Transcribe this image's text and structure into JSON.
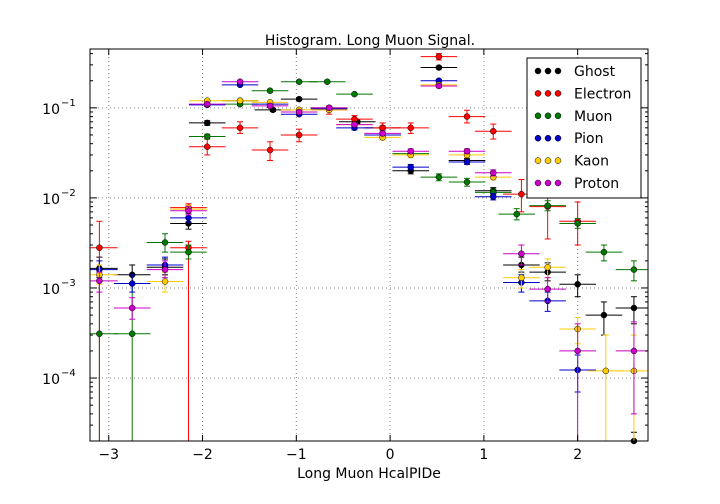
{
  "chart_data": {
    "type": "scatter",
    "title": "Histogram. Long Muon Signal.",
    "xlabel": "Long Muon HcalPIDe",
    "ylabel": "",
    "xlim": [
      -3.2,
      2.75
    ],
    "ylim": [
      2e-05,
      0.45
    ],
    "yscale": "log",
    "grid": true,
    "legend_position": "top-right",
    "bin_halfwidth": 0.195,
    "x_ticks": [
      {
        "value": -3,
        "label": "−3"
      },
      {
        "value": -2,
        "label": "−2"
      },
      {
        "value": -1,
        "label": "−1"
      },
      {
        "value": 0,
        "label": "0"
      },
      {
        "value": 1,
        "label": "1"
      },
      {
        "value": 2,
        "label": "2"
      }
    ],
    "y_ticks": [
      {
        "value": 0.0001,
        "base": "10",
        "exp": "−4"
      },
      {
        "value": 0.001,
        "base": "10",
        "exp": "−3"
      },
      {
        "value": 0.01,
        "base": "10",
        "exp": "−2"
      },
      {
        "value": 0.1,
        "base": "10",
        "exp": "−1"
      }
    ],
    "series": [
      {
        "name": "Ghost",
        "color": "#000000",
        "points": [
          {
            "x": -3.1,
            "y": 0.00165,
            "lo": 0.0012,
            "hi": 0.0022
          },
          {
            "x": -2.75,
            "y": 0.0014,
            "lo": 0.0011,
            "hi": 0.0018
          },
          {
            "x": -2.4,
            "y": 0.0017,
            "lo": 0.0014,
            "hi": 0.0021
          },
          {
            "x": -2.15,
            "y": 0.0052,
            "lo": 0.0045,
            "hi": 0.006
          },
          {
            "x": -1.95,
            "y": 0.068,
            "lo": 0.064,
            "hi": 0.072
          },
          {
            "x": -1.6,
            "y": 0.12,
            "lo": 0.116,
            "hi": 0.124
          },
          {
            "x": -1.25,
            "y": 0.095,
            "lo": 0.091,
            "hi": 0.099
          },
          {
            "x": -0.97,
            "y": 0.125,
            "lo": 0.121,
            "hi": 0.129
          },
          {
            "x": -0.65,
            "y": 0.1,
            "lo": 0.096,
            "hi": 0.104
          },
          {
            "x": -0.35,
            "y": 0.07,
            "lo": 0.067,
            "hi": 0.073
          },
          {
            "x": -0.08,
            "y": 0.06,
            "lo": 0.057,
            "hi": 0.063
          },
          {
            "x": 0.22,
            "y": 0.02,
            "lo": 0.0185,
            "hi": 0.0215
          },
          {
            "x": 0.52,
            "y": 0.28,
            "lo": 0.27,
            "hi": 0.29
          },
          {
            "x": 0.82,
            "y": 0.026,
            "lo": 0.0245,
            "hi": 0.0275
          },
          {
            "x": 1.1,
            "y": 0.012,
            "lo": 0.011,
            "hi": 0.013
          },
          {
            "x": 1.4,
            "y": 0.0018,
            "lo": 0.0015,
            "hi": 0.0022
          },
          {
            "x": 1.68,
            "y": 0.0015,
            "lo": 0.0012,
            "hi": 0.0019
          },
          {
            "x": 2.0,
            "y": 0.0011,
            "lo": 0.0008,
            "hi": 0.0014
          },
          {
            "x": 2.28,
            "y": 0.0005,
            "lo": 0.0003,
            "hi": 0.0007
          },
          {
            "x": 2.6,
            "y": 0.0006,
            "lo": 0.0004,
            "hi": 0.0008
          },
          {
            "x": 2.6,
            "y": 2e-05,
            "lo": 1.8e-05,
            "hi": 2.5e-05
          }
        ]
      },
      {
        "name": "Electron",
        "color": "#ff0000",
        "points": [
          {
            "x": -3.1,
            "y": 0.0028,
            "lo": 2e-05,
            "hi": 0.0055
          },
          {
            "x": -2.15,
            "y": 0.0028,
            "lo": 2e-05,
            "hi": 0.0033
          },
          {
            "x": -2.15,
            "y": 0.0078,
            "lo": 0.007,
            "hi": 0.0086
          },
          {
            "x": -1.95,
            "y": 0.037,
            "lo": 0.03,
            "hi": 0.045
          },
          {
            "x": -1.6,
            "y": 0.06,
            "lo": 0.052,
            "hi": 0.07
          },
          {
            "x": -1.28,
            "y": 0.034,
            "lo": 0.026,
            "hi": 0.042
          },
          {
            "x": -0.97,
            "y": 0.05,
            "lo": 0.042,
            "hi": 0.058
          },
          {
            "x": -0.65,
            "y": 0.095,
            "lo": 0.085,
            "hi": 0.105
          },
          {
            "x": -0.38,
            "y": 0.075,
            "lo": 0.068,
            "hi": 0.082
          },
          {
            "x": -0.08,
            "y": 0.06,
            "lo": 0.053,
            "hi": 0.068
          },
          {
            "x": 0.22,
            "y": 0.06,
            "lo": 0.052,
            "hi": 0.068
          },
          {
            "x": 0.52,
            "y": 0.37,
            "lo": 0.34,
            "hi": 0.4
          },
          {
            "x": 0.82,
            "y": 0.08,
            "lo": 0.068,
            "hi": 0.094
          },
          {
            "x": 1.1,
            "y": 0.055,
            "lo": 0.045,
            "hi": 0.066
          },
          {
            "x": 1.4,
            "y": 0.011,
            "lo": 0.007,
            "hi": 0.016
          },
          {
            "x": 1.68,
            "y": 0.008,
            "lo": 0.0035,
            "hi": 0.014
          },
          {
            "x": 2.0,
            "y": 0.0055,
            "lo": 0.003,
            "hi": 0.009
          }
        ]
      },
      {
        "name": "Muon",
        "color": "#007700",
        "points": [
          {
            "x": -3.1,
            "y": 0.00031,
            "lo": 2e-05,
            "hi": 0.0015
          },
          {
            "x": -2.75,
            "y": 0.00031,
            "lo": 2e-05,
            "hi": 0.0011
          },
          {
            "x": -2.4,
            "y": 0.0032,
            "lo": 0.0025,
            "hi": 0.004
          },
          {
            "x": -2.15,
            "y": 0.0025,
            "lo": 0.0021,
            "hi": 0.003
          },
          {
            "x": -1.95,
            "y": 0.048,
            "lo": 0.045,
            "hi": 0.051
          },
          {
            "x": -1.6,
            "y": 0.11,
            "lo": 0.106,
            "hi": 0.114
          },
          {
            "x": -1.28,
            "y": 0.155,
            "lo": 0.15,
            "hi": 0.16
          },
          {
            "x": -0.97,
            "y": 0.195,
            "lo": 0.19,
            "hi": 0.2
          },
          {
            "x": -0.67,
            "y": 0.195,
            "lo": 0.19,
            "hi": 0.2
          },
          {
            "x": -0.38,
            "y": 0.142,
            "lo": 0.138,
            "hi": 0.146
          },
          {
            "x": -0.08,
            "y": 0.05,
            "lo": 0.048,
            "hi": 0.052
          },
          {
            "x": 0.22,
            "y": 0.031,
            "lo": 0.0295,
            "hi": 0.0325
          },
          {
            "x": 0.52,
            "y": 0.017,
            "lo": 0.0155,
            "hi": 0.0185
          },
          {
            "x": 0.82,
            "y": 0.015,
            "lo": 0.0135,
            "hi": 0.0165
          },
          {
            "x": 1.1,
            "y": 0.0115,
            "lo": 0.0105,
            "hi": 0.0125
          },
          {
            "x": 1.35,
            "y": 0.0066,
            "lo": 0.0057,
            "hi": 0.0076
          },
          {
            "x": 1.68,
            "y": 0.0082,
            "lo": 0.0072,
            "hi": 0.0093
          },
          {
            "x": 2.0,
            "y": 0.0052,
            "lo": 0.0046,
            "hi": 0.0059
          },
          {
            "x": 2.28,
            "y": 0.0025,
            "lo": 0.002,
            "hi": 0.003
          },
          {
            "x": 2.6,
            "y": 0.0016,
            "lo": 0.0012,
            "hi": 0.002
          }
        ]
      },
      {
        "name": "Pion",
        "color": "#0000cc",
        "points": [
          {
            "x": -3.1,
            "y": 0.0016,
            "lo": 0.0013,
            "hi": 0.002
          },
          {
            "x": -2.75,
            "y": 0.00112,
            "lo": 0.0009,
            "hi": 0.0014
          },
          {
            "x": -2.4,
            "y": 0.0018,
            "lo": 0.0015,
            "hi": 0.0022
          },
          {
            "x": -2.15,
            "y": 0.006,
            "lo": 0.0054,
            "hi": 0.0067
          },
          {
            "x": -1.95,
            "y": 0.108,
            "lo": 0.104,
            "hi": 0.112
          },
          {
            "x": -1.6,
            "y": 0.18,
            "lo": 0.175,
            "hi": 0.185
          },
          {
            "x": -1.28,
            "y": 0.11,
            "lo": 0.106,
            "hi": 0.114
          },
          {
            "x": -0.97,
            "y": 0.085,
            "lo": 0.082,
            "hi": 0.088
          },
          {
            "x": -0.65,
            "y": 0.097,
            "lo": 0.093,
            "hi": 0.101
          },
          {
            "x": -0.38,
            "y": 0.06,
            "lo": 0.057,
            "hi": 0.063
          },
          {
            "x": -0.08,
            "y": 0.05,
            "lo": 0.047,
            "hi": 0.053
          },
          {
            "x": 0.22,
            "y": 0.022,
            "lo": 0.0205,
            "hi": 0.0235
          },
          {
            "x": 0.52,
            "y": 0.2,
            "lo": 0.193,
            "hi": 0.207
          },
          {
            "x": 0.82,
            "y": 0.025,
            "lo": 0.0235,
            "hi": 0.0265
          },
          {
            "x": 1.1,
            "y": 0.0103,
            "lo": 0.0095,
            "hi": 0.0112
          },
          {
            "x": 1.4,
            "y": 0.00115,
            "lo": 0.0009,
            "hi": 0.0014
          },
          {
            "x": 1.68,
            "y": 0.00072,
            "lo": 0.00055,
            "hi": 0.0009
          },
          {
            "x": 2.0,
            "y": 0.000123,
            "lo": 7e-05,
            "hi": 0.00018
          }
        ]
      },
      {
        "name": "Kaon",
        "color": "#ffcc00",
        "points": [
          {
            "x": -3.1,
            "y": 0.0014,
            "lo": 0.0011,
            "hi": 0.0018
          },
          {
            "x": -2.4,
            "y": 0.00118,
            "lo": 0.0009,
            "hi": 0.0015
          },
          {
            "x": -2.15,
            "y": 0.0075,
            "lo": 0.0068,
            "hi": 0.0083
          },
          {
            "x": -1.95,
            "y": 0.12,
            "lo": 0.116,
            "hi": 0.124
          },
          {
            "x": -1.6,
            "y": 0.12,
            "lo": 0.116,
            "hi": 0.124
          },
          {
            "x": -1.28,
            "y": 0.115,
            "lo": 0.111,
            "hi": 0.119
          },
          {
            "x": -0.97,
            "y": 0.095,
            "lo": 0.091,
            "hi": 0.099
          },
          {
            "x": -0.65,
            "y": 0.095,
            "lo": 0.091,
            "hi": 0.099
          },
          {
            "x": -0.38,
            "y": 0.065,
            "lo": 0.062,
            "hi": 0.068
          },
          {
            "x": -0.08,
            "y": 0.047,
            "lo": 0.044,
            "hi": 0.05
          },
          {
            "x": 0.22,
            "y": 0.03,
            "lo": 0.028,
            "hi": 0.032
          },
          {
            "x": 0.52,
            "y": 0.18,
            "lo": 0.173,
            "hi": 0.187
          },
          {
            "x": 0.82,
            "y": 0.03,
            "lo": 0.028,
            "hi": 0.032
          },
          {
            "x": 1.1,
            "y": 0.017,
            "lo": 0.0158,
            "hi": 0.0183
          },
          {
            "x": 1.4,
            "y": 0.0013,
            "lo": 0.001,
            "hi": 0.0016
          },
          {
            "x": 1.68,
            "y": 0.0017,
            "lo": 0.0013,
            "hi": 0.0021
          },
          {
            "x": 2.0,
            "y": 0.00035,
            "lo": 0.00024,
            "hi": 0.00047
          },
          {
            "x": 2.3,
            "y": 0.00012,
            "lo": 2e-05,
            "hi": 0.0003
          },
          {
            "x": 2.6,
            "y": 0.00012,
            "lo": 2e-05,
            "hi": 0.0003
          }
        ]
      },
      {
        "name": "Proton",
        "color": "#cc00cc",
        "points": [
          {
            "x": -3.1,
            "y": 0.0012,
            "lo": 0.0009,
            "hi": 0.0015
          },
          {
            "x": -2.75,
            "y": 0.0006,
            "lo": 0.00045,
            "hi": 0.00078
          },
          {
            "x": -2.4,
            "y": 0.0016,
            "lo": 0.0013,
            "hi": 0.002
          },
          {
            "x": -2.15,
            "y": 0.0072,
            "lo": 0.0065,
            "hi": 0.008
          },
          {
            "x": -1.95,
            "y": 0.11,
            "lo": 0.106,
            "hi": 0.114
          },
          {
            "x": -1.6,
            "y": 0.195,
            "lo": 0.19,
            "hi": 0.2
          },
          {
            "x": -1.28,
            "y": 0.105,
            "lo": 0.101,
            "hi": 0.109
          },
          {
            "x": -0.97,
            "y": 0.09,
            "lo": 0.087,
            "hi": 0.093
          },
          {
            "x": -0.65,
            "y": 0.1,
            "lo": 0.096,
            "hi": 0.104
          },
          {
            "x": -0.38,
            "y": 0.065,
            "lo": 0.062,
            "hi": 0.068
          },
          {
            "x": -0.08,
            "y": 0.052,
            "lo": 0.049,
            "hi": 0.055
          },
          {
            "x": 0.22,
            "y": 0.033,
            "lo": 0.031,
            "hi": 0.035
          },
          {
            "x": 0.52,
            "y": 0.175,
            "lo": 0.168,
            "hi": 0.182
          },
          {
            "x": 0.82,
            "y": 0.033,
            "lo": 0.031,
            "hi": 0.035
          },
          {
            "x": 1.1,
            "y": 0.019,
            "lo": 0.0175,
            "hi": 0.0205
          },
          {
            "x": 1.4,
            "y": 0.0024,
            "lo": 0.0018,
            "hi": 0.003
          },
          {
            "x": 1.68,
            "y": 0.00097,
            "lo": 0.0007,
            "hi": 0.0013
          },
          {
            "x": 2.0,
            "y": 0.0002,
            "lo": 2e-05,
            "hi": 0.0004
          },
          {
            "x": 2.6,
            "y": 0.0002,
            "lo": 4e-05,
            "hi": 0.00042
          }
        ]
      }
    ]
  }
}
